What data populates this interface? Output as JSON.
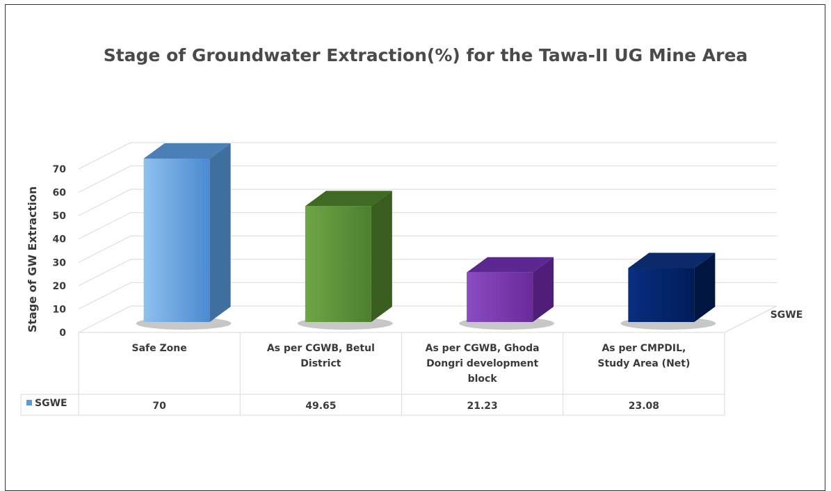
{
  "chart_data": {
    "type": "bar",
    "title": "Stage of Groundwater Extraction(%) for the Tawa-II UG Mine Area",
    "ylabel": "Stage of GW Extraction",
    "xlabel": "",
    "ylim": [
      0,
      70
    ],
    "yticks": [
      0,
      10,
      20,
      30,
      40,
      50,
      60,
      70
    ],
    "categories": [
      [
        "Safe Zone"
      ],
      [
        "As per CGWB, Betul",
        "District"
      ],
      [
        "As per CGWB, Ghoda",
        "Dongri development",
        "block"
      ],
      [
        "As per CMPDIL,",
        "Study Area (Net)"
      ]
    ],
    "series": [
      {
        "name": "SGWE",
        "values": [
          70,
          49.65,
          21.23,
          23.08
        ],
        "value_labels": [
          "70",
          "49.65",
          "21.23",
          "23.08"
        ],
        "bar_colors": [
          "#5b9bd5",
          "#548235",
          "#7030a0",
          "#002060"
        ],
        "legend_color": "#5b9bd5"
      }
    ],
    "series_axis_label": "SGWE",
    "grid": true,
    "data_table": true,
    "three_d": true
  }
}
